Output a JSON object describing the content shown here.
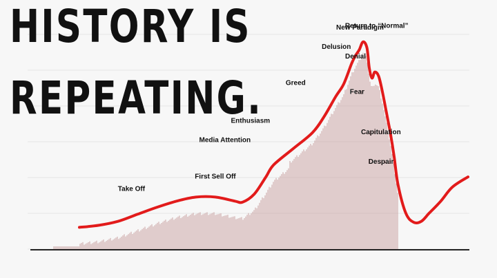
{
  "headline": {
    "line1": "HISTORY IS",
    "line2": "REPEATING."
  },
  "colors": {
    "curve": "#e21b1b",
    "bars": "#c9a0a0",
    "grid": "#e4e4e4",
    "axis": "#222222",
    "label": "#111111",
    "text": "#111111"
  },
  "chart_data": {
    "type": "line",
    "title": "",
    "xlabel": "",
    "ylabel": "",
    "grid": true,
    "xlim": [
      0,
      100
    ],
    "ylim": [
      0,
      100
    ],
    "series": [
      {
        "x": [
          0,
          5,
          10,
          15,
          20,
          25,
          30,
          35,
          40,
          42,
          45,
          48,
          50,
          55,
          60,
          63,
          66,
          68,
          70,
          71,
          72,
          73,
          74,
          74.6,
          75.3,
          76,
          77,
          78,
          79,
          80,
          81,
          82,
          84,
          86,
          88,
          90,
          93,
          96,
          100
        ],
        "values": [
          5,
          6,
          8,
          11.5,
          15,
          18,
          20,
          20,
          18,
          17.5,
          21.5,
          30,
          36,
          44,
          52,
          60,
          70,
          76,
          86,
          90,
          93,
          97,
          94,
          84,
          79,
          82,
          80,
          72,
          62,
          52,
          40,
          26,
          12,
          7.5,
          8,
          12,
          18,
          25,
          30
        ]
      }
    ],
    "annotations": [
      {
        "text": "Take Off",
        "x": 14,
        "y": 11.5
      },
      {
        "text": "First Sell Off",
        "x": 40,
        "y": 18
      },
      {
        "text": "Media Attention",
        "x": 50,
        "y": 36
      },
      {
        "text": "Enthusiasm",
        "x": 58,
        "y": 48
      },
      {
        "text": "Greed",
        "x": 65,
        "y": 66
      },
      {
        "text": "Delusion",
        "x": 70,
        "y": 86
      },
      {
        "text": "New Paradigm",
        "x": 73,
        "y": 97
      },
      {
        "text": "Denial",
        "x": 74.6,
        "y": 84
      },
      {
        "text": "Return to “Normal”",
        "x": 76,
        "y": 82
      },
      {
        "text": "Fear",
        "x": 79,
        "y": 62
      },
      {
        "text": "Capitulation",
        "x": 81,
        "y": 40
      },
      {
        "text": "Despair",
        "x": 82,
        "y": 26
      }
    ]
  }
}
